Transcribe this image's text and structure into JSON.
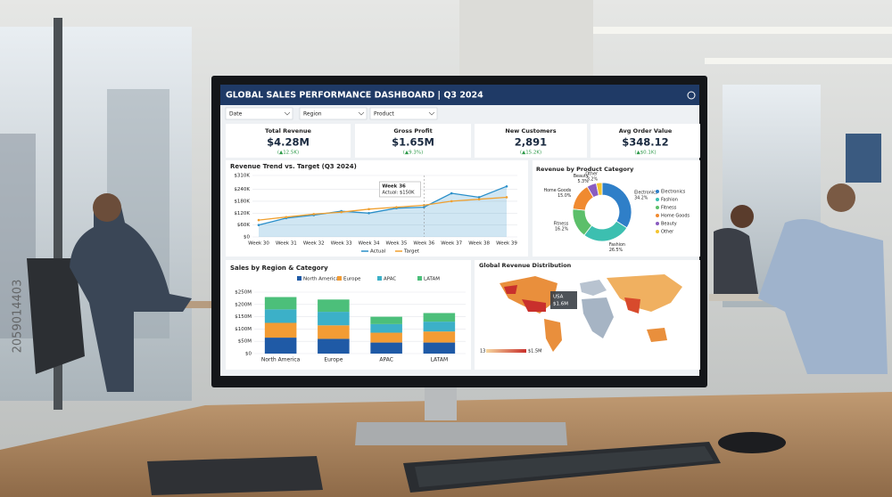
{
  "header": {
    "title": "GLOBAL SALES PERFORMANCE DASHBOARD | Q3 2024"
  },
  "filters": [
    "Date",
    "Region",
    "Product"
  ],
  "kpis": [
    {
      "label": "Total Revenue",
      "value": "$4.28M",
      "change": "(▲12.5K)"
    },
    {
      "label": "Gross Profit",
      "value": "$1.65M",
      "change": "(▲9.3%)"
    },
    {
      "label": "New Customers",
      "value": "2,891",
      "change": "(▲15.2K)"
    },
    {
      "label": "Avg Order Value",
      "value": "$348.12",
      "change": "(▲$0.1K)"
    }
  ],
  "revenue_trend": {
    "type": "line",
    "title": "Revenue Trend vs. Target (Q3 2024)",
    "categories": [
      "Week 30",
      "Week 31",
      "Week 32",
      "Week 33",
      "Week 34",
      "Week 35",
      "Week 36",
      "Week 37",
      "Week 38",
      "Week 39"
    ],
    "series": [
      {
        "name": "Actual",
        "color": "#2a8fc9",
        "values": [
          60000,
          95000,
          110000,
          130000,
          120000,
          145000,
          150000,
          220000,
          200000,
          255000
        ]
      },
      {
        "name": "Target",
        "color": "#f0a030",
        "values": [
          85000,
          100000,
          115000,
          125000,
          140000,
          150000,
          160000,
          180000,
          190000,
          200000
        ]
      }
    ],
    "ylim": [
      0,
      310000
    ],
    "yticks": [
      {
        "value": 0,
        "label": "$0"
      },
      {
        "value": 60000,
        "label": "$60K"
      },
      {
        "value": 120000,
        "label": "$120K"
      },
      {
        "value": 180000,
        "label": "$180K"
      },
      {
        "value": 240000,
        "label": "$240K"
      },
      {
        "value": 310000,
        "label": "$310K"
      }
    ],
    "tooltip": {
      "title": "Week 36",
      "text": "Actual: $150K"
    }
  },
  "product_mix": {
    "type": "pie",
    "title": "Revenue by Product Category",
    "categories": [
      "Electronics",
      "Fashion",
      "Fitness",
      "Home Goods",
      "Beauty",
      "Other"
    ],
    "values": [
      34.2,
      26.5,
      16.2,
      15.0,
      5.3,
      3.2
    ],
    "value_labels": [
      "34.2%",
      "26.5%",
      "16.2%",
      "15.0%",
      "5.3%",
      "3.2%"
    ],
    "colors": [
      "#2f7fc8",
      "#3cbfb0",
      "#5cbf6a",
      "#f08a30",
      "#8a5cc0",
      "#f4c430"
    ]
  },
  "region_sales": {
    "type": "bar",
    "title": "Sales by Region & Category",
    "categories": [
      "North America",
      "Europe",
      "APAC",
      "LATAM"
    ],
    "series": [
      {
        "name": "North America",
        "color": "#1f5aa6",
        "values": [
          65,
          60,
          45,
          45
        ]
      },
      {
        "name": "Europe",
        "color": "#f39c34",
        "values": [
          60,
          55,
          40,
          45
        ]
      },
      {
        "name": "APAC",
        "color": "#3cb0c8",
        "values": [
          55,
          55,
          35,
          40
        ]
      },
      {
        "name": "LATAM",
        "color": "#4cbf7a",
        "values": [
          50,
          50,
          30,
          35
        ]
      }
    ],
    "ylim": [
      0,
      250
    ],
    "yticks": [
      {
        "value": 0,
        "label": "$0"
      },
      {
        "value": 50,
        "label": "$50M"
      },
      {
        "value": 100,
        "label": "$100M"
      },
      {
        "value": 150,
        "label": "$150M"
      },
      {
        "value": 200,
        "label": "$200M"
      },
      {
        "value": 250,
        "label": "$250M"
      }
    ]
  },
  "revenue_map": {
    "title": "Global Revenue Distribution",
    "tooltip": {
      "country": "USA",
      "value": "$1.6M"
    },
    "scale_labels": [
      "13",
      "$1.5M"
    ]
  },
  "watermark": "2059014403"
}
